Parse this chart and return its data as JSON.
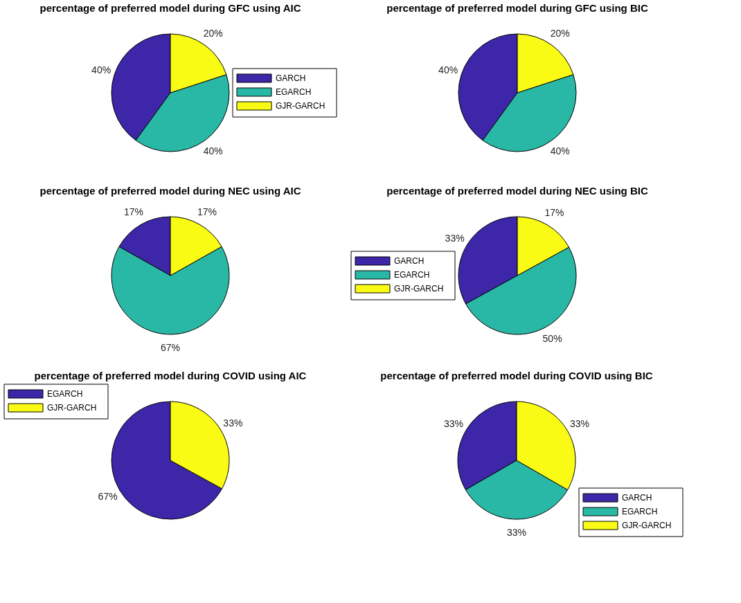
{
  "chart_data": [
    {
      "type": "pie",
      "title": "percentage of preferred model during GFC using AIC",
      "categories": [
        "GARCH",
        "EGARCH",
        "GJR-GARCH"
      ],
      "values": [
        40,
        40,
        20
      ],
      "colors": [
        "#3e26a8",
        "#2ab8a6",
        "#f9fb15"
      ],
      "value_labels": [
        "40%",
        "40%",
        "20%"
      ],
      "legend": "right"
    },
    {
      "type": "pie",
      "title": "percentage of preferred model during GFC using BIC",
      "categories": [
        null,
        null,
        null
      ],
      "values": [
        40,
        40,
        20
      ],
      "colors": [
        "#3e26a8",
        "#2ab8a6",
        "#f9fb15"
      ],
      "value_labels": [
        "40%",
        "40%",
        "20%"
      ]
    },
    {
      "type": "pie",
      "title": "percentage of preferred model during NEC using AIC",
      "categories": [
        null,
        null,
        null
      ],
      "values": [
        17,
        67,
        17
      ],
      "colors": [
        "#3e26a8",
        "#2ab8a6",
        "#f9fb15"
      ],
      "value_labels": [
        "17%",
        "67%",
        "17%"
      ]
    },
    {
      "type": "pie",
      "title": "percentage of preferred model during NEC using BIC",
      "categories": [
        "GARCH",
        "EGARCH",
        "GJR-GARCH"
      ],
      "values": [
        33,
        50,
        17
      ],
      "colors": [
        "#3e26a8",
        "#2ab8a6",
        "#f9fb15"
      ],
      "value_labels": [
        "33%",
        "50%",
        "17%"
      ],
      "legend": "left"
    },
    {
      "type": "pie",
      "title": "percentage of preferred model during COVID using AIC",
      "categories": [
        "EGARCH",
        "GJR-GARCH"
      ],
      "values": [
        67,
        33
      ],
      "colors": [
        "#3e26a8",
        "#f9fb15"
      ],
      "value_labels": [
        "67%",
        "33%"
      ],
      "legend": "top left"
    },
    {
      "type": "pie",
      "title": "percentage of preferred model during COVID using BIC",
      "categories": [
        "GARCH",
        "EGARCH",
        "GJR-GARCH"
      ],
      "values": [
        33,
        33,
        33
      ],
      "colors": [
        "#3e26a8",
        "#2ab8a6",
        "#f9fb15"
      ],
      "value_labels": [
        "33%",
        "33%",
        "33%"
      ],
      "legend": "bottom right"
    }
  ]
}
